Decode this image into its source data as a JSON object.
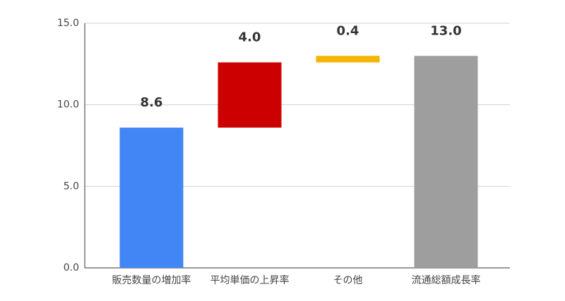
{
  "chart_data": {
    "type": "waterfall",
    "categories": [
      "販売数量の増加率",
      "平均単価の上昇率",
      "その他",
      "流通総額成長率"
    ],
    "values": [
      8.6,
      4.0,
      0.4,
      13.0
    ],
    "value_labels": [
      "8.6",
      "4.0",
      "0.4",
      "13.0"
    ],
    "is_total": [
      false,
      false,
      false,
      true
    ],
    "colors": [
      "#4285f4",
      "#cc0000",
      "#f4b400",
      "#9e9e9e"
    ],
    "ylim": [
      0,
      15
    ],
    "yticks": [
      {
        "value": 0,
        "label": "0.0"
      },
      {
        "value": 5,
        "label": "5.0"
      },
      {
        "value": 10,
        "label": "10.0"
      },
      {
        "value": 15,
        "label": "15.0"
      }
    ],
    "grid": true
  }
}
